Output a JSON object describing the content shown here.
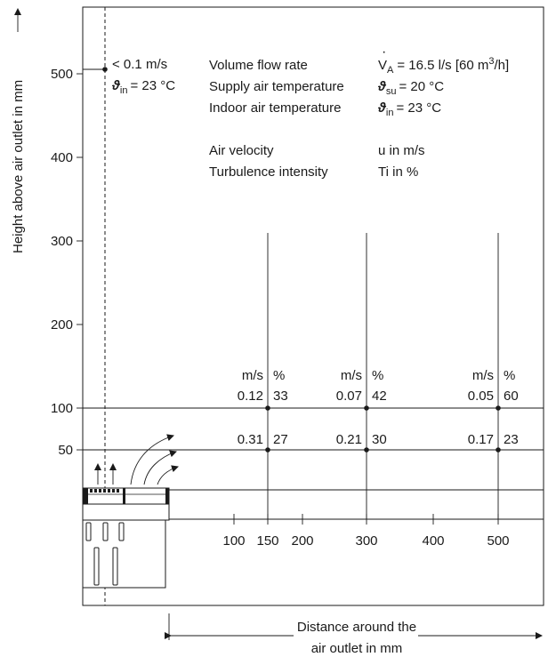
{
  "y_axis": {
    "label": "Height above air outlet in mm",
    "ticks": [
      {
        "value": 500,
        "label": "500"
      },
      {
        "value": 400,
        "label": "400"
      },
      {
        "value": 300,
        "label": "300"
      },
      {
        "value": 200,
        "label": "200"
      },
      {
        "value": 100,
        "label": "100"
      },
      {
        "value": 50,
        "label": "50"
      }
    ]
  },
  "x_axis": {
    "label_line1": "Distance around the",
    "label_line2": "air outlet in mm",
    "ticks": [
      {
        "value": 100,
        "label": "100"
      },
      {
        "value": 150,
        "label": "150"
      },
      {
        "value": 200,
        "label": "200"
      },
      {
        "value": 300,
        "label": "300"
      },
      {
        "value": 400,
        "label": "400"
      },
      {
        "value": 500,
        "label": "500"
      }
    ]
  },
  "top_note": {
    "velocity": "< 0.1 m/s",
    "temp_symbol": "ϑ",
    "temp_sub": "in",
    "temp_value": "= 23 °C"
  },
  "info": {
    "flow_label": "Volume flow rate",
    "flow_symbol": "V",
    "flow_sub": "A",
    "flow_value_a": "= 16.5 l/s [60 m",
    "flow_value_sup": "3",
    "flow_value_b": "/h]",
    "supply_label": "Supply air temperature",
    "supply_symbol": "ϑ",
    "supply_sub": "su",
    "supply_value": "= 20 °C",
    "indoor_label": "Indoor air temperature",
    "indoor_symbol": "ϑ",
    "indoor_sub": "in",
    "indoor_value": "= 23 °C",
    "velocity_label": "Air velocity",
    "velocity_value": "u in m/s",
    "turbulence_label": "Turbulence intensity",
    "turbulence_value": "Ti in %"
  },
  "measurements": {
    "unit_velocity": "m/s",
    "unit_percent": "%",
    "columns": [
      {
        "distance": 150,
        "at_100": {
          "u": "0.12",
          "ti": "33"
        },
        "at_50": {
          "u": "0.31",
          "ti": "27"
        }
      },
      {
        "distance": 300,
        "at_100": {
          "u": "0.07",
          "ti": "42"
        },
        "at_50": {
          "u": "0.21",
          "ti": "30"
        }
      },
      {
        "distance": 500,
        "at_100": {
          "u": "0.05",
          "ti": "60"
        },
        "at_50": {
          "u": "0.17",
          "ti": "23"
        }
      }
    ]
  }
}
